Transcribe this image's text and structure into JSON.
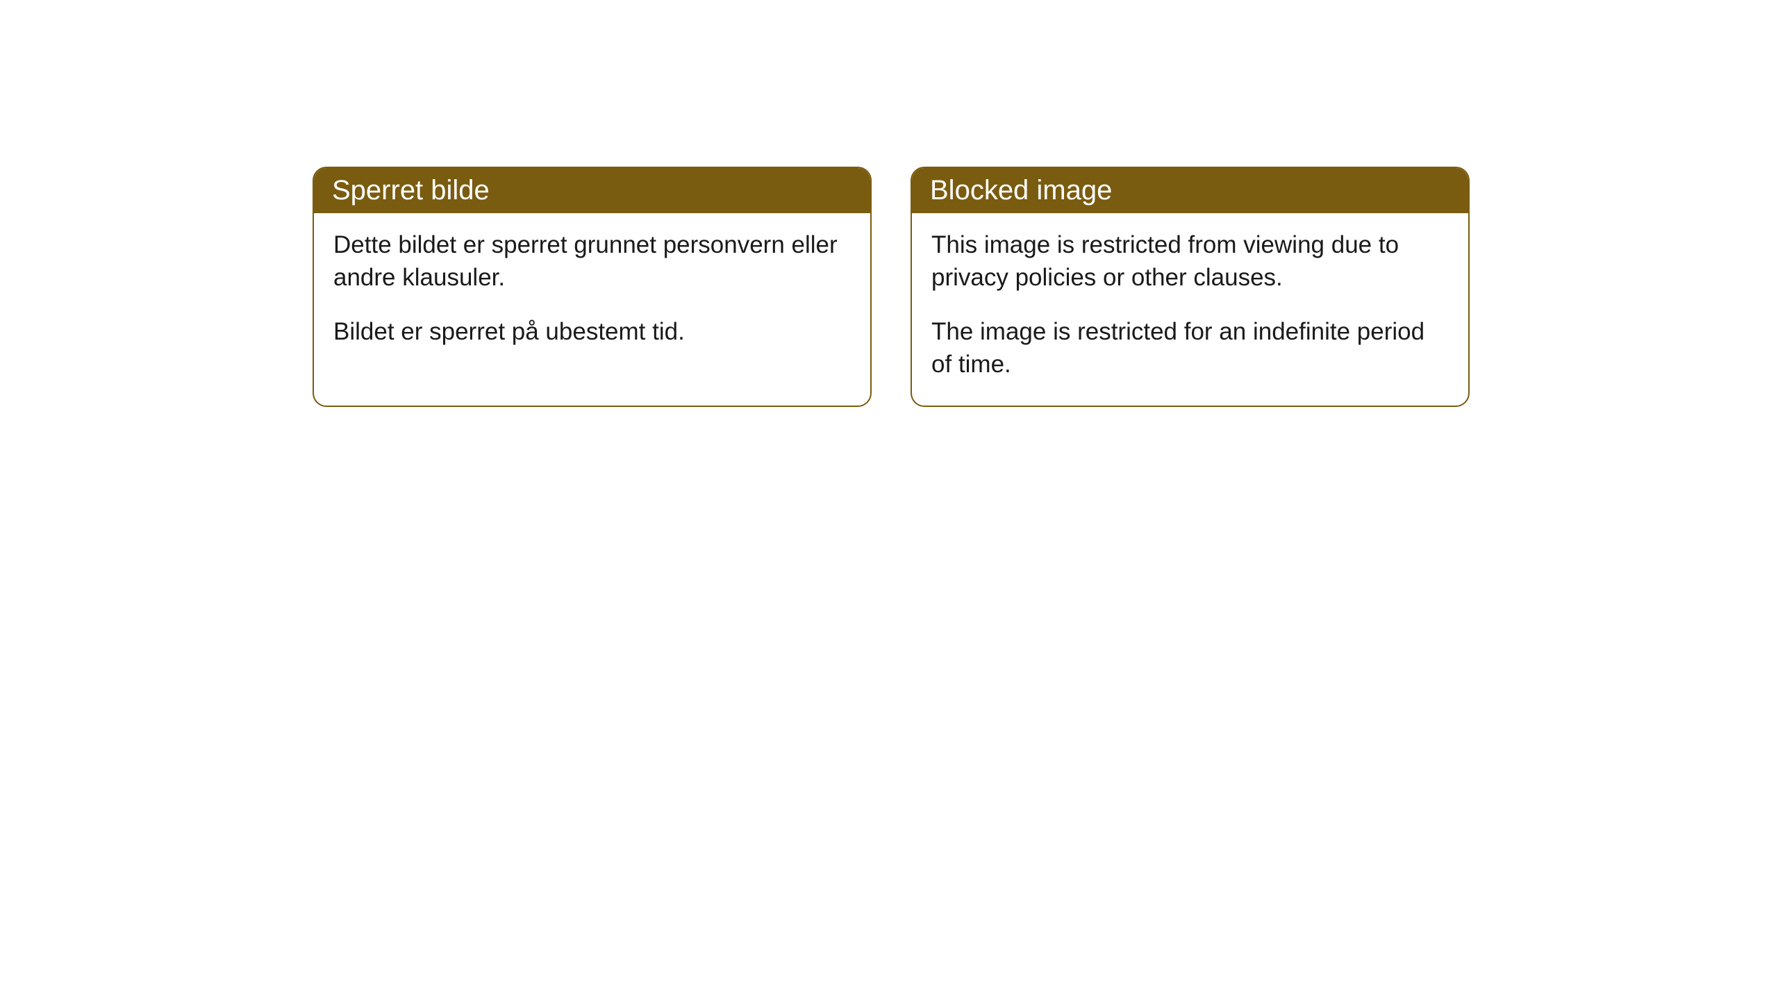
{
  "cards": [
    {
      "title": "Sperret bilde",
      "paragraph1": "Dette bildet er sperret grunnet personvern eller andre klausuler.",
      "paragraph2": "Bildet er sperret på ubestemt tid."
    },
    {
      "title": "Blocked image",
      "paragraph1": "This image is restricted from viewing due to privacy policies or other clauses.",
      "paragraph2": "The image is restricted for an indefinite period of time."
    }
  ],
  "styling": {
    "header_background_color": "#7a5c10",
    "header_text_color": "#ffffff",
    "border_color": "#7a5c10",
    "card_background_color": "#ffffff",
    "body_text_color": "#1a1a1a",
    "page_background_color": "#ffffff",
    "border_radius": 20,
    "title_fontsize": 40,
    "body_fontsize": 35
  }
}
